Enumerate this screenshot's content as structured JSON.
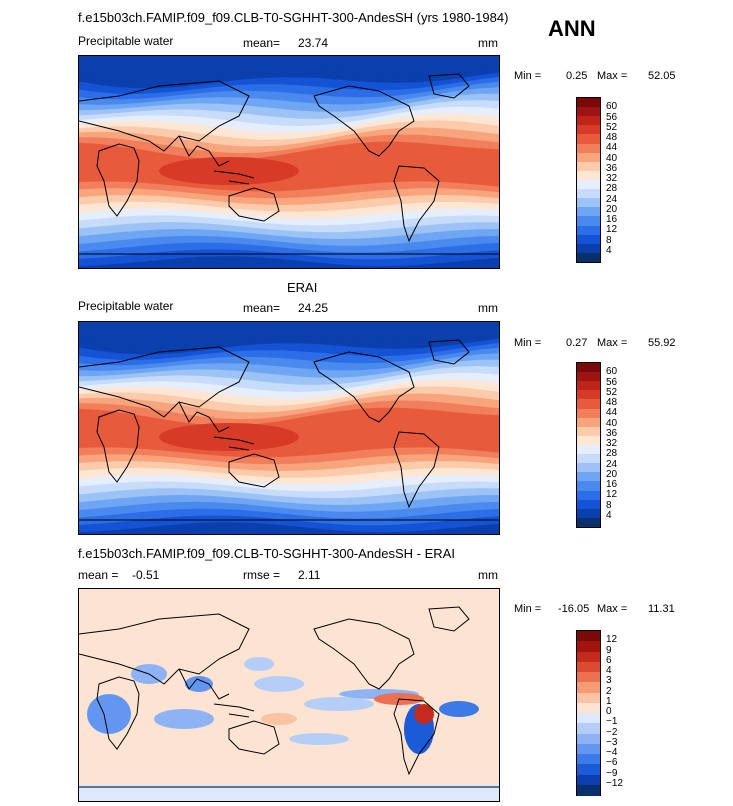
{
  "case_title": "f.e15b03ch.FAMIP.f09_f09.CLB-T0-SGHHT-300-AndesSH (yrs 1980-1984)",
  "season": "ANN",
  "colors": {
    "abs_scale": [
      "#08306b",
      "#0b3fae",
      "#1453d6",
      "#2b6ee8",
      "#4a8aef",
      "#6fa6f3",
      "#9cc2f6",
      "#c7dcfa",
      "#e7eefb",
      "#fde6d4",
      "#fccbab",
      "#f8a57e",
      "#f27f5b",
      "#e85a3c",
      "#d73b27",
      "#bf2418",
      "#9e1412",
      "#7a0a0a"
    ],
    "diff_scale": [
      "#08306b",
      "#0b3fae",
      "#1a5bd8",
      "#3c7ae8",
      "#6396f0",
      "#8db3f4",
      "#b5cef8",
      "#dce8fb",
      "#fde3d2",
      "#fac3a4",
      "#f59b76",
      "#ec7152",
      "#dc4a33",
      "#c42b1d",
      "#a3140f",
      "#7a0a0a"
    ]
  },
  "panels": [
    {
      "id": "model",
      "variable": "Precipitable water",
      "stat_label": "mean=",
      "stat_value": "23.74",
      "units": "mm",
      "min_label": "Min =",
      "min_value": "0.25",
      "max_label": "Max =",
      "max_value": "52.05",
      "colorbar_labels": [
        "60",
        "56",
        "52",
        "48",
        "44",
        "40",
        "36",
        "32",
        "28",
        "24",
        "20",
        "16",
        "12",
        "8",
        "4"
      ]
    },
    {
      "id": "obs",
      "subtitle": "ERAI",
      "variable": "Precipitable water",
      "stat_label": "mean=",
      "stat_value": "24.25",
      "units": "mm",
      "min_label": "Min =",
      "min_value": "0.27",
      "max_label": "Max =",
      "max_value": "55.92",
      "colorbar_labels": [
        "60",
        "56",
        "52",
        "48",
        "44",
        "40",
        "36",
        "32",
        "28",
        "24",
        "20",
        "16",
        "12",
        "8",
        "4"
      ]
    },
    {
      "id": "diff",
      "subtitle": "f.e15b03ch.FAMIP.f09_f09.CLB-T0-SGHHT-300-AndesSH - ERAI",
      "stat_label": "mean =",
      "stat_value": "-0.51",
      "stat2_label": "rmse =",
      "stat2_value": "2.11",
      "units": "mm",
      "min_label": "Min =",
      "min_value": "-16.05",
      "max_label": "Max =",
      "max_value": "11.31",
      "colorbar_labels": [
        "12",
        "9",
        "6",
        "4",
        "3",
        "2",
        "1",
        "0",
        "−1",
        "−2",
        "−3",
        "−4",
        "−6",
        "−9",
        "−12"
      ]
    }
  ],
  "chart_data": [
    {
      "type": "heatmap",
      "title": "Precipitable water",
      "units": "mm",
      "mean": 23.74,
      "min": 0.25,
      "max": 52.05,
      "levels": [
        4,
        8,
        12,
        16,
        20,
        24,
        28,
        32,
        36,
        40,
        44,
        48,
        52,
        56,
        60
      ],
      "legend": "right"
    },
    {
      "type": "heatmap",
      "title": "ERAI",
      "units": "mm",
      "mean": 24.25,
      "min": 0.27,
      "max": 55.92,
      "levels": [
        4,
        8,
        12,
        16,
        20,
        24,
        28,
        32,
        36,
        40,
        44,
        48,
        52,
        56,
        60
      ],
      "legend": "right"
    },
    {
      "type": "heatmap",
      "title": "f.e15b03ch.FAMIP.f09_f09.CLB-T0-SGHHT-300-AndesSH - ERAI",
      "units": "mm",
      "mean": -0.51,
      "rmse": 2.11,
      "min": -16.05,
      "max": 11.31,
      "levels": [
        -12,
        -9,
        -6,
        -4,
        -3,
        -2,
        -1,
        0,
        1,
        2,
        3,
        4,
        6,
        9,
        12
      ],
      "legend": "right"
    }
  ]
}
